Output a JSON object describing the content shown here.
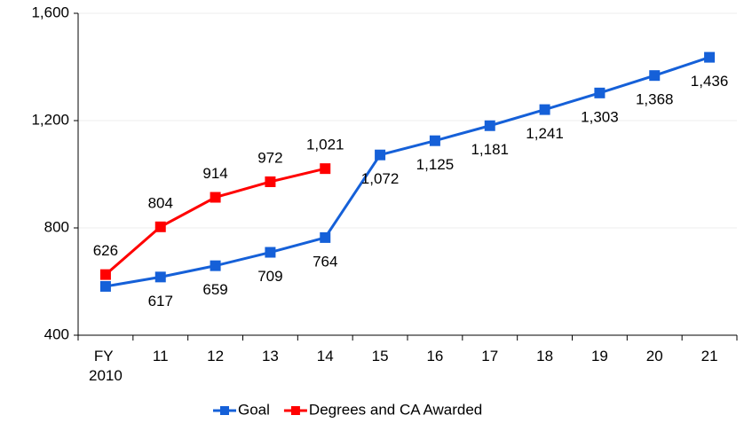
{
  "chart_data": {
    "type": "line",
    "categories": [
      "FY 2010",
      "11",
      "12",
      "13",
      "14",
      "15",
      "16",
      "17",
      "18",
      "19",
      "20",
      "21"
    ],
    "series": [
      {
        "name": "Goal",
        "color": "#1560d8",
        "values": [
          582,
          617,
          659,
          709,
          764,
          1072,
          1125,
          1181,
          1241,
          1303,
          1368,
          1436
        ],
        "value_labels": [
          null,
          "617",
          "659",
          "709",
          "764",
          "1,072",
          "1,125",
          "1,181",
          "1,241",
          "1,303",
          "1,368",
          "1,436"
        ]
      },
      {
        "name": "Degrees and CA Awarded",
        "color": "#ff0000",
        "values": [
          626,
          804,
          914,
          972,
          1021,
          null,
          null,
          null,
          null,
          null,
          null,
          null
        ],
        "value_labels": [
          "626",
          "804",
          "914",
          "972",
          "1,021",
          null,
          null,
          null,
          null,
          null,
          null,
          null
        ]
      }
    ],
    "ylim": [
      400,
      1600
    ],
    "yticks": [
      400,
      800,
      {
        "value": 1200,
        "label": "1,200"
      },
      {
        "value": 1600,
        "label": "1,600"
      }
    ],
    "grid": true
  }
}
